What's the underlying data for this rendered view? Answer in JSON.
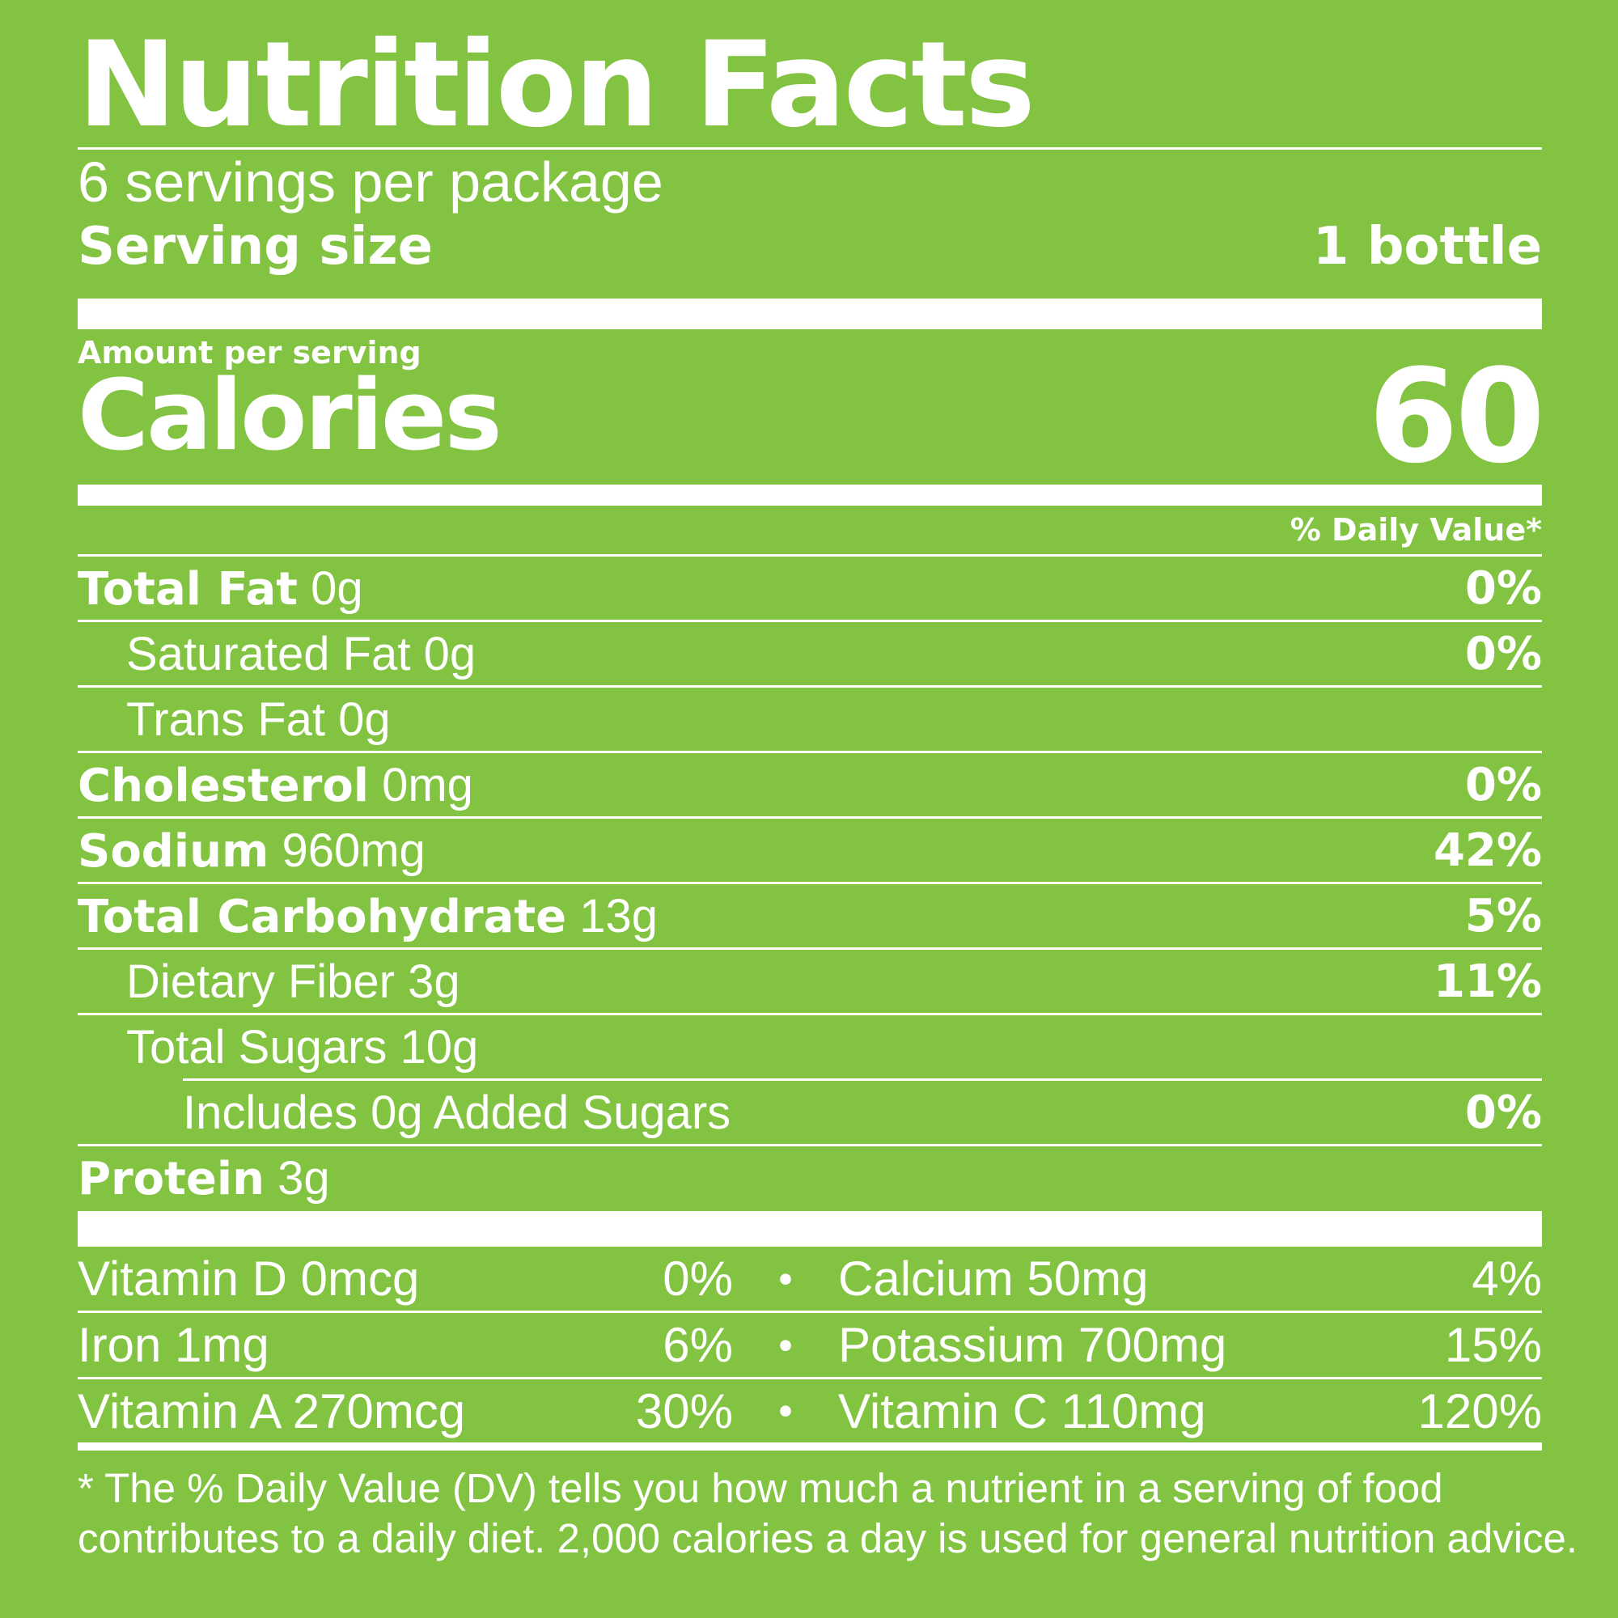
{
  "title": "Nutrition Facts",
  "servings_per_package": "6 servings per package",
  "serving_size": {
    "label": "Serving size",
    "value": "1 bottle"
  },
  "amount_per_serving": "Amount per serving",
  "calories": {
    "label": "Calories",
    "value": "60"
  },
  "daily_value_header": "% Daily Value*",
  "nutrients": [
    {
      "name": "Total Fat",
      "amount": "0g",
      "dv": "0%"
    },
    {
      "name": "Saturated Fat",
      "amount": "0g",
      "dv": "0%"
    },
    {
      "name": "Trans Fat",
      "amount": "0g",
      "dv": ""
    },
    {
      "name": "Cholesterol",
      "amount": "0mg",
      "dv": "0%"
    },
    {
      "name": "Sodium",
      "amount": "960mg",
      "dv": "42%"
    },
    {
      "name": "Total Carbohydrate",
      "amount": "13g",
      "dv": "5%"
    },
    {
      "name": "Dietary Fiber",
      "amount": "3g",
      "dv": "11%"
    },
    {
      "name": "Total Sugars",
      "amount": "10g",
      "dv": ""
    },
    {
      "name": "Includes 0g Added Sugars",
      "amount": "",
      "dv": "0%"
    },
    {
      "name": "Protein",
      "amount": "3g",
      "dv": ""
    }
  ],
  "vitamins": [
    {
      "left": "Vitamin D 0mcg",
      "left_dv": "0%",
      "bullet": "•",
      "right": "Calcium 50mg",
      "right_dv": "4%"
    },
    {
      "left": "Iron 1mg",
      "left_dv": "6%",
      "bullet": "•",
      "right": "Potassium 700mg",
      "right_dv": "15%"
    },
    {
      "left": "Vitamin A 270mcg",
      "left_dv": "30%",
      "bullet": "•",
      "right": "Vitamin C 110mg",
      "right_dv": "120%"
    }
  ],
  "footnote": {
    "line1": "* The % Daily Value (DV) tells you how much a nutrient in a serving of food",
    "line2": "contributes to a daily diet. 2,000 calories a day is used for general nutrition advice."
  },
  "colors": {
    "background": "#82c341",
    "text": "#ffffff"
  }
}
